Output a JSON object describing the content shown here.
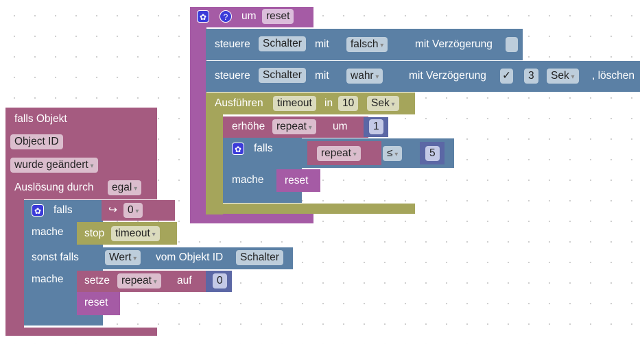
{
  "procedure": {
    "label": "um",
    "name": "reset",
    "row1": {
      "steuere": "steuere",
      "device": "Schalter",
      "mit": "mit",
      "value": "falsch",
      "delay": "mit Verzögerung"
    },
    "row2": {
      "steuere": "steuere",
      "device": "Schalter",
      "mit": "mit",
      "value": "wahr",
      "delay": "mit Verzögerung",
      "check": "✓",
      "amount": "3",
      "unit": "Sek",
      "clear": ", löschen"
    },
    "timeout": {
      "label": "Ausführen",
      "name": "timeout",
      "in": "in",
      "amount": "10",
      "unit": "Sek",
      "increment": {
        "label": "erhöhe",
        "var": "repeat",
        "by": "um",
        "value": "1"
      },
      "if": {
        "label": "falls",
        "var": "repeat",
        "op": "≤",
        "value": "5",
        "do": "mache",
        "call": "reset"
      }
    }
  },
  "event": {
    "title": "falls Objekt",
    "object": "Object ID",
    "change": "wurde geändert",
    "trigger_label": "Auslösung durch",
    "trigger": "egal",
    "if": {
      "label": "falls",
      "arrow": "↪",
      "value": "0",
      "do": "mache",
      "stop": "stop",
      "stop_target": "timeout",
      "elseif": "sonst falls",
      "state": "Wert",
      "from": "vom Objekt ID",
      "object": "Schalter",
      "do2": "mache",
      "set": "setze",
      "var": "repeat",
      "to": "auf",
      "call": "reset"
    }
  },
  "colors": {
    "procedure": "#a55ba5",
    "control": "#5b80a5",
    "logic": "#a55b80",
    "timer": "#a5a55b",
    "math": "#5b67a5"
  }
}
